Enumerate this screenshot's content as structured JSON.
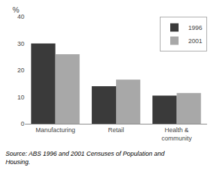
{
  "chart_data": {
    "type": "bar",
    "categories": [
      "Manufacturing",
      "Retail",
      "Health &\ncommunity"
    ],
    "series": [
      {
        "name": "1996",
        "color": "#3a3a3a",
        "values": [
          30,
          14,
          10.5
        ]
      },
      {
        "name": "2001",
        "color": "#a8a8a8",
        "values": [
          26,
          16.5,
          11.5
        ]
      }
    ],
    "ylabel": "%",
    "ylim": [
      0,
      40
    ],
    "yticks": [
      0,
      10,
      20,
      30,
      40
    ],
    "grid": false,
    "legend": "upper right",
    "annotations": [
      "Source: ABS 1996 and 2001 Censuses of Population and\nHousing."
    ]
  }
}
